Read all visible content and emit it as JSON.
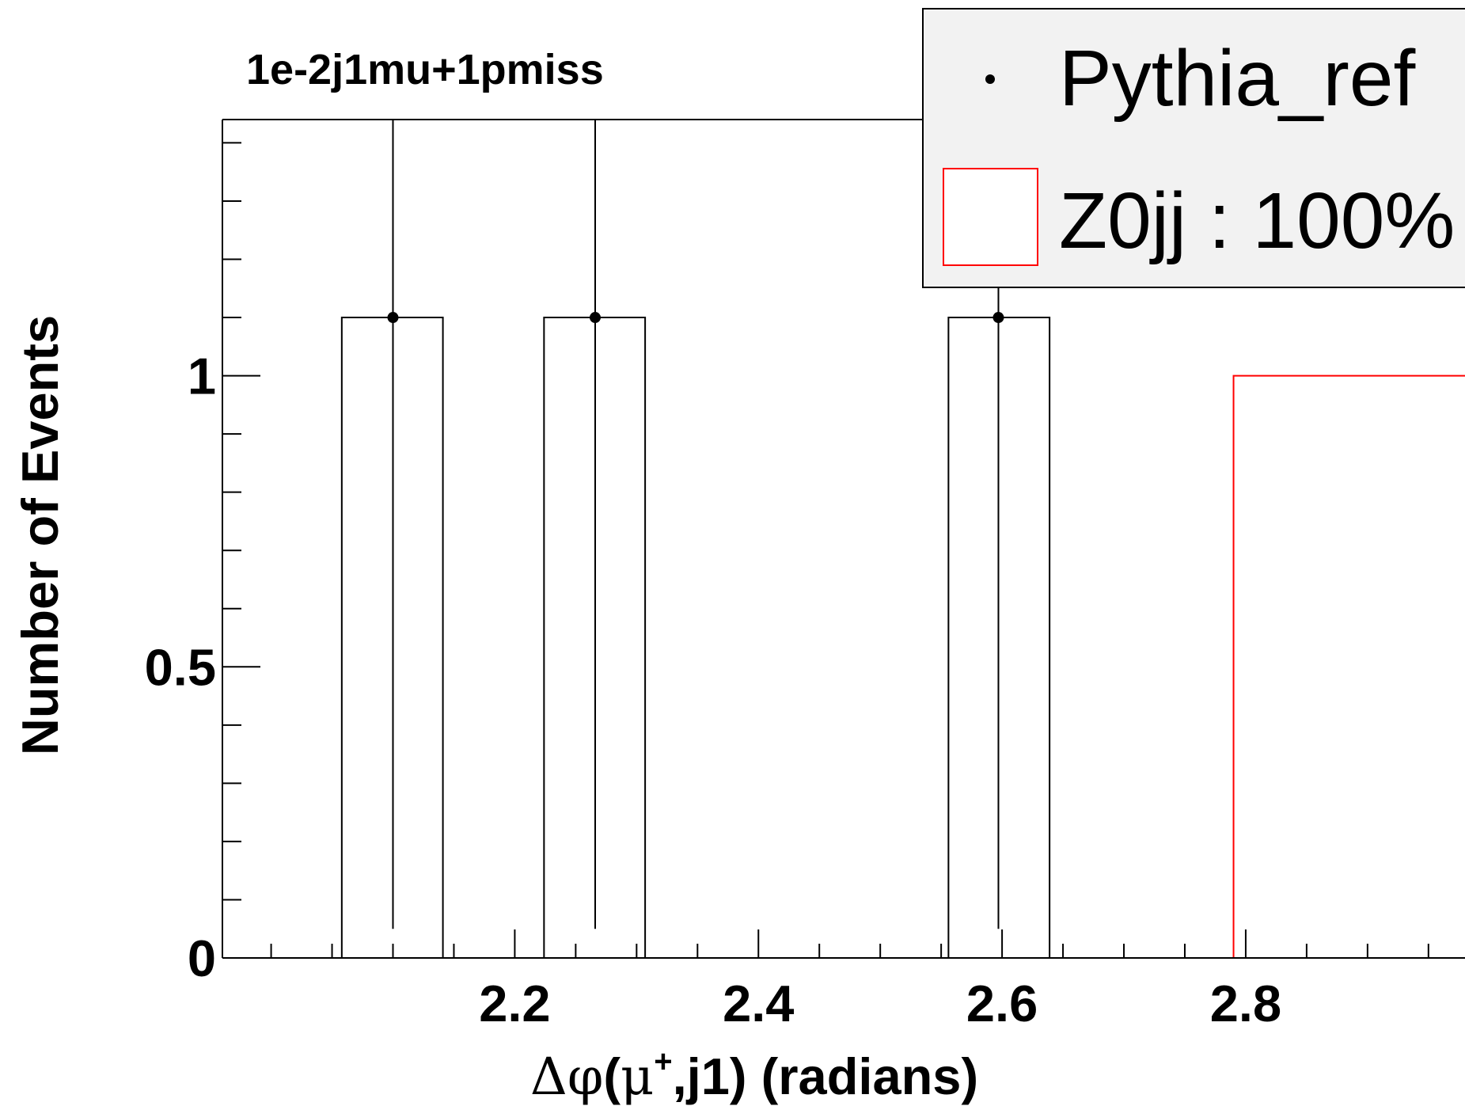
{
  "chart_data": {
    "type": "bar",
    "title": "1e-2j1mu+1pmiss",
    "xlabel": {
      "delta": "Δ",
      "phi": "φ",
      "open": "(",
      "mu": "μ",
      "sup": "+",
      "rest": ",j1) (radians)"
    },
    "ylabel": "Number of Events",
    "xlim": [
      1.96,
      2.98
    ],
    "ylim": [
      0,
      1.44
    ],
    "x_ticks": [
      {
        "value": 2.2,
        "label": "2.2"
      },
      {
        "value": 2.4,
        "label": "2.4"
      },
      {
        "value": 2.6,
        "label": "2.6"
      },
      {
        "value": 2.8,
        "label": "2.8"
      }
    ],
    "y_ticks": [
      {
        "value": 0,
        "label": "0"
      },
      {
        "value": 0.5,
        "label": "0.5"
      },
      {
        "value": 1,
        "label": "1"
      }
    ],
    "bin_width": 0.083,
    "series": [
      {
        "name": "Pythia_ref",
        "style": "points_with_error_bars",
        "color": "#000000",
        "points": [
          {
            "x": 2.1,
            "y": 1.1,
            "err_low": 1.05,
            "err_high": 1.6
          },
          {
            "x": 2.266,
            "y": 1.1,
            "err_low": 1.05,
            "err_high": 1.6
          },
          {
            "x": 2.597,
            "y": 1.1,
            "err_low": 1.05,
            "err_high": 1.6
          }
        ]
      },
      {
        "name": "Z0jj : 100%",
        "style": "histogram",
        "color": "#ff0000",
        "bins": [
          {
            "x_low": 2.79,
            "x_high": 3.0,
            "y": 1.0
          }
        ]
      }
    ],
    "reference_histogram": {
      "color": "#000000",
      "bins": [
        {
          "x_low": 2.058,
          "x_high": 2.141,
          "y": 1.1
        },
        {
          "x_low": 2.224,
          "x_high": 2.307,
          "y": 1.1
        },
        {
          "x_low": 2.556,
          "x_high": 2.639,
          "y": 1.1
        }
      ]
    },
    "legend": {
      "position": "top-right",
      "entries": [
        {
          "label": "Pythia_ref",
          "marker": "point"
        },
        {
          "label": "Z0jj : 100%",
          "marker": "box"
        }
      ]
    },
    "grid": false
  }
}
